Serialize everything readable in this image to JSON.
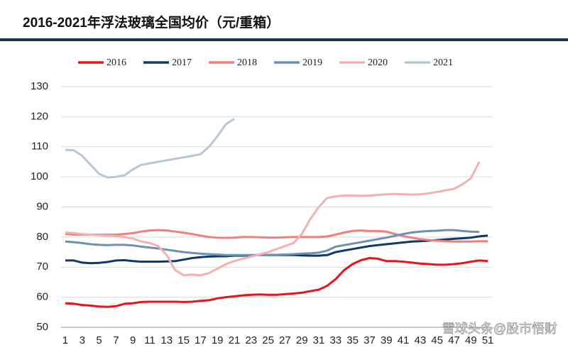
{
  "chart_data": {
    "type": "line",
    "title": "2016-2021年浮法玻璃全国均价（元/重箱）",
    "watermark": "雪球头条@股市悟财",
    "x": [
      1,
      2,
      3,
      4,
      5,
      6,
      7,
      8,
      9,
      10,
      11,
      12,
      13,
      14,
      15,
      16,
      17,
      18,
      19,
      20,
      21,
      22,
      23,
      24,
      25,
      26,
      27,
      28,
      29,
      30,
      31,
      32,
      33,
      34,
      35,
      36,
      37,
      38,
      39,
      40,
      41,
      42,
      43,
      44,
      45,
      46,
      47,
      48,
      49,
      50,
      51
    ],
    "xlim": [
      0.5,
      51.5
    ],
    "xticks": [
      1,
      3,
      5,
      7,
      9,
      11,
      13,
      15,
      17,
      19,
      21,
      23,
      25,
      27,
      29,
      31,
      33,
      35,
      37,
      39,
      41,
      43,
      45,
      47,
      49,
      51
    ],
    "ylim": [
      50,
      130
    ],
    "yticks": [
      50,
      60,
      70,
      80,
      90,
      100,
      110,
      120,
      130
    ],
    "grid": true,
    "series": [
      {
        "name": "2016",
        "color": "#e8141b",
        "values": [
          58,
          57.8,
          57.4,
          57.2,
          56.9,
          56.8,
          57,
          57.8,
          58,
          58.4,
          58.5,
          58.5,
          58.5,
          58.5,
          58.4,
          58.5,
          58.8,
          59,
          59.6,
          60,
          60.3,
          60.6,
          60.8,
          60.9,
          60.8,
          60.8,
          61,
          61.2,
          61.5,
          62,
          62.5,
          63.8,
          66,
          69,
          71,
          72.3,
          73,
          72.8,
          72,
          72,
          71.8,
          71.5,
          71.2,
          71,
          70.8,
          70.8,
          71,
          71.3,
          71.8,
          72.2,
          72
        ]
      },
      {
        "name": "2017",
        "color": "#0e3a6b",
        "values": [
          72.2,
          72.2,
          71.5,
          71.3,
          71.4,
          71.7,
          72.2,
          72.3,
          72,
          71.8,
          71.8,
          71.8,
          71.9,
          72,
          72.5,
          73,
          73.3,
          73.5,
          73.6,
          73.6,
          73.8,
          73.8,
          73.9,
          74,
          74,
          74,
          74,
          74,
          73.9,
          73.8,
          73.8,
          74,
          75,
          75.5,
          76,
          76.5,
          77,
          77.3,
          77.6,
          77.9,
          78.2,
          78.5,
          78.6,
          78.8,
          79,
          79.2,
          79.4,
          79.6,
          79.8,
          80.2,
          80.5
        ]
      },
      {
        "name": "2018",
        "color": "#f07f7b",
        "values": [
          81,
          80.8,
          80.8,
          80.8,
          80.8,
          80.8,
          80.8,
          81,
          81.3,
          81.8,
          82.2,
          82.3,
          82.2,
          81.8,
          81.4,
          81,
          80.5,
          80,
          79.8,
          79.7,
          79.8,
          80,
          80,
          79.9,
          79.8,
          79.8,
          79.9,
          80,
          80,
          80,
          80,
          80.2,
          80.8,
          81.5,
          82,
          82.2,
          82,
          82,
          81.8,
          81,
          80.3,
          79.8,
          79.3,
          79,
          78.8,
          78.6,
          78.5,
          78.5,
          78.5,
          78.6,
          78.6
        ]
      },
      {
        "name": "2019",
        "color": "#6e91b3",
        "values": [
          78.5,
          78.3,
          78,
          77.6,
          77.4,
          77.3,
          77.4,
          77.4,
          77.2,
          76.8,
          76.5,
          76.2,
          75.8,
          75.4,
          75,
          74.7,
          74.5,
          74.3,
          74.2,
          74,
          74,
          74,
          74,
          74,
          74,
          74.1,
          74.2,
          74.3,
          74.5,
          74.6,
          74.8,
          75.5,
          76.8,
          77.3,
          77.8,
          78.3,
          78.8,
          79.3,
          79.8,
          80.4,
          81,
          81.5,
          81.8,
          82,
          82.1,
          82.3,
          82.3,
          82,
          81.8,
          81.7,
          null
        ]
      },
      {
        "name": "2020",
        "color": "#f5b0b0",
        "values": [
          81.5,
          81.3,
          81,
          80.8,
          80.6,
          80.5,
          80.3,
          80,
          79.5,
          78.5,
          78,
          77,
          74,
          69,
          67.3,
          67.5,
          67.3,
          68,
          69.5,
          71,
          72,
          72.8,
          73.5,
          74.2,
          75,
          76,
          77,
          78,
          81,
          86,
          90,
          93,
          93.5,
          93.8,
          93.8,
          93.7,
          93.8,
          94,
          94.2,
          94.3,
          94.2,
          94.1,
          94.2,
          94.5,
          95,
          95.5,
          96,
          97.5,
          99.5,
          105,
          null
        ]
      },
      {
        "name": "2021",
        "color": "#b6c7d8",
        "values": [
          109,
          108.8,
          107,
          104,
          101,
          99.8,
          100,
          100.5,
          102.5,
          104,
          104.5,
          105,
          105.5,
          106,
          106.5,
          107,
          107.5,
          110,
          113.5,
          117.5,
          119.3,
          null,
          null,
          null,
          null,
          null,
          null,
          null,
          null,
          null,
          null,
          null,
          null,
          null,
          null,
          null,
          null,
          null,
          null,
          null,
          null,
          null,
          null,
          null,
          null,
          null,
          null,
          null,
          null,
          null,
          null
        ]
      }
    ]
  }
}
